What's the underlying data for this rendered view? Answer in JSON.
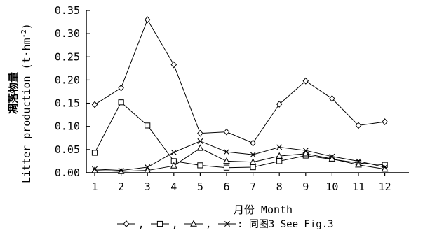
{
  "chart_data": {
    "type": "line",
    "xlabel": "月份 Month",
    "ylabel_cn": "凋落物量",
    "ylabel_en": "Litter production (t·hm",
    "ylabel_exp": "-2",
    "ylabel_close": ")",
    "categories": [
      "1",
      "2",
      "3",
      "4",
      "5",
      "6",
      "7",
      "8",
      "9",
      "10",
      "11",
      "12"
    ],
    "yticks": [
      "0.00",
      "0.05",
      "0.10",
      "0.15",
      "0.20",
      "0.25",
      "0.30",
      "0.35"
    ],
    "ylim": [
      0,
      0.35
    ],
    "series": [
      {
        "marker": "diamond",
        "values": [
          0.147,
          0.183,
          0.33,
          0.233,
          0.085,
          0.088,
          0.064,
          0.148,
          0.198,
          0.16,
          0.102,
          0.11
        ]
      },
      {
        "marker": "square",
        "values": [
          0.043,
          0.152,
          0.102,
          0.025,
          0.016,
          0.011,
          0.012,
          0.025,
          0.037,
          0.029,
          0.021,
          0.017
        ]
      },
      {
        "marker": "triangle",
        "values": [
          0.005,
          0.003,
          0.005,
          0.015,
          0.053,
          0.025,
          0.023,
          0.036,
          0.041,
          0.03,
          0.017,
          0.008
        ]
      },
      {
        "marker": "x",
        "values": [
          0.008,
          0.005,
          0.012,
          0.044,
          0.068,
          0.045,
          0.039,
          0.055,
          0.048,
          0.035,
          0.025,
          0.012
        ]
      }
    ],
    "legend": {
      "sep1": ",",
      "sep2": ",",
      "sep3": ",",
      "tail": ": 同图3 See Fig.3"
    }
  }
}
